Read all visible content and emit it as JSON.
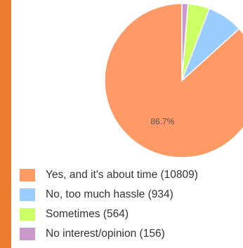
{
  "chart_data": {
    "type": "pie",
    "title": "",
    "legend_position": "bottom",
    "slices": [
      {
        "label": "Yes, and it's about time (10809)",
        "value": 10809,
        "percent_label": "86.7%",
        "color": "#ff9966"
      },
      {
        "label": "No, too much hassle (934)",
        "value": 934,
        "percent_label": "",
        "color": "#99ccff"
      },
      {
        "label": "Sometimes (564)",
        "value": 564,
        "percent_label": "",
        "color": "#ccff66"
      },
      {
        "label": "No interest/opinion (156)",
        "value": 156,
        "percent_label": "",
        "color": "#cc99cc"
      }
    ]
  },
  "accent_color": "#ee7c30"
}
